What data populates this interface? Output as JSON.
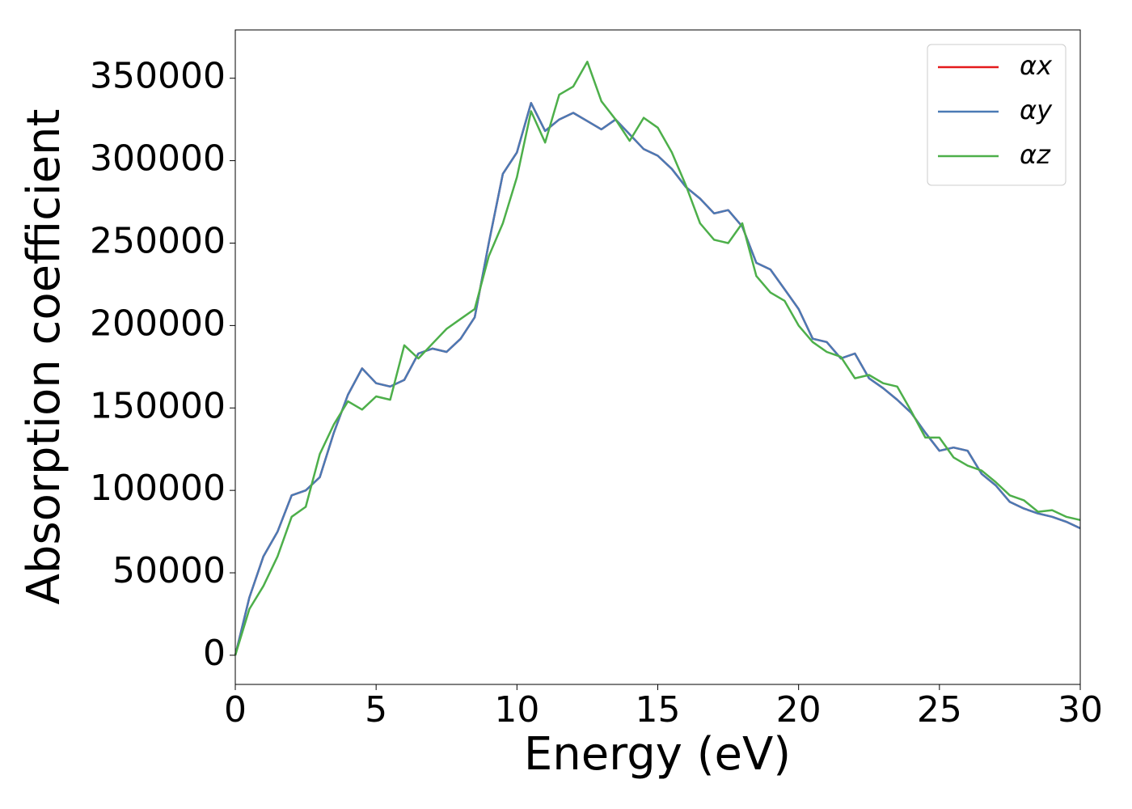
{
  "chart_data": {
    "type": "line",
    "xlabel": "Energy (eV)",
    "ylabel": "Absorption coefficient",
    "x": [
      0,
      0.5,
      1,
      1.5,
      2,
      2.5,
      3,
      3.5,
      4,
      4.5,
      5,
      5.5,
      6,
      6.5,
      7,
      7.5,
      8,
      8.5,
      9,
      9.5,
      10,
      10.5,
      11,
      11.5,
      12,
      12.5,
      13,
      13.5,
      14,
      14.5,
      15,
      15.5,
      16,
      16.5,
      17,
      17.5,
      18,
      18.5,
      19,
      19.5,
      20,
      20.5,
      21,
      21.5,
      22,
      22.5,
      23,
      23.5,
      24,
      24.5,
      25,
      25.5,
      26,
      26.5,
      27,
      27.5,
      28,
      28.5,
      29,
      29.5,
      30
    ],
    "series": [
      {
        "name": "αx",
        "color": "#e41a1c",
        "values": [
          0,
          35000,
          60000,
          75000,
          97000,
          100000,
          108000,
          135000,
          158000,
          174000,
          165000,
          163000,
          167000,
          183000,
          186000,
          184000,
          192000,
          205000,
          250000,
          292000,
          305000,
          335000,
          318000,
          325000,
          329000,
          324000,
          319000,
          325000,
          316000,
          307000,
          303000,
          295000,
          284000,
          277000,
          268000,
          270000,
          260000,
          238000,
          234000,
          222000,
          210000,
          192000,
          190000,
          180000,
          183000,
          168000,
          162000,
          155000,
          147000,
          135000,
          124000,
          126000,
          124000,
          110000,
          103000,
          93000,
          89000,
          86000,
          84000,
          81000,
          77000
        ]
      },
      {
        "name": "αy",
        "color": "#4a7ab5",
        "values": [
          0,
          35000,
          60000,
          75000,
          97000,
          100000,
          108000,
          135000,
          158000,
          174000,
          165000,
          163000,
          167000,
          183000,
          186000,
          184000,
          192000,
          205000,
          250000,
          292000,
          305000,
          335000,
          318000,
          325000,
          329000,
          324000,
          319000,
          325000,
          316000,
          307000,
          303000,
          295000,
          284000,
          277000,
          268000,
          270000,
          260000,
          238000,
          234000,
          222000,
          210000,
          192000,
          190000,
          180000,
          183000,
          168000,
          162000,
          155000,
          147000,
          135000,
          124000,
          126000,
          124000,
          110000,
          103000,
          93000,
          89000,
          86000,
          84000,
          81000,
          77000
        ]
      },
      {
        "name": "αz",
        "color": "#4daf4a",
        "values": [
          0,
          28000,
          42000,
          60000,
          84000,
          90000,
          122000,
          140000,
          154000,
          149000,
          157000,
          155000,
          188000,
          180000,
          189000,
          198000,
          204000,
          210000,
          242000,
          262000,
          290000,
          330000,
          311000,
          340000,
          345000,
          360000,
          336000,
          325000,
          312000,
          326000,
          320000,
          305000,
          285000,
          262000,
          252000,
          250000,
          262000,
          230000,
          220000,
          215000,
          200000,
          190000,
          184000,
          181000,
          168000,
          170000,
          165000,
          163000,
          148000,
          132000,
          132000,
          120000,
          115000,
          112000,
          105000,
          97000,
          94000,
          87000,
          88000,
          84000,
          82000
        ]
      }
    ],
    "xlim": [
      0,
      30
    ],
    "xticks": [
      0,
      5,
      10,
      15,
      20,
      25,
      30
    ],
    "ylim": [
      -17700,
      379300
    ],
    "yticks": [
      0,
      50000,
      100000,
      150000,
      200000,
      250000,
      300000,
      350000
    ],
    "legend": "upper right",
    "grid": false
  }
}
